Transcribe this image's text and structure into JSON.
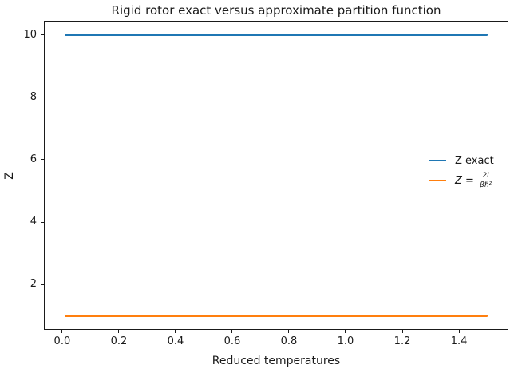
{
  "chart_data": {
    "type": "line",
    "title": "Rigid rotor exact versus approximate partition function",
    "xlabel": "Reduced temperatures",
    "ylabel": "Z",
    "xlim": [
      -0.0645,
      1.5745
    ],
    "ylim": [
      0.55,
      10.45
    ],
    "xticks": [
      "0.0",
      "0.2",
      "0.4",
      "0.6",
      "0.8",
      "1.0",
      "1.2",
      "1.4"
    ],
    "yticks": [
      "2",
      "4",
      "6",
      "8",
      "10"
    ],
    "grid": false,
    "x_range_of_data": [
      0.01,
      1.5
    ],
    "series": [
      {
        "id": "z-exact",
        "name": "Z exact",
        "color": "#1f77b4",
        "value": 10,
        "x_start": 0.01,
        "x_end": 1.5,
        "shape": "constant-horizontal-line"
      },
      {
        "id": "z-approx",
        "name": "Z = 2I/(βℏ²)",
        "color": "#ff7f0e",
        "value": 1,
        "x_start": 0.01,
        "x_end": 1.5,
        "shape": "constant-horizontal-line"
      }
    ],
    "legend": {
      "position": "center right",
      "items": [
        {
          "label": "Z exact"
        },
        {
          "label_prefix": "Z = ",
          "fraction_numerator": "2I",
          "fraction_denominator": "βℏ²"
        }
      ]
    }
  }
}
